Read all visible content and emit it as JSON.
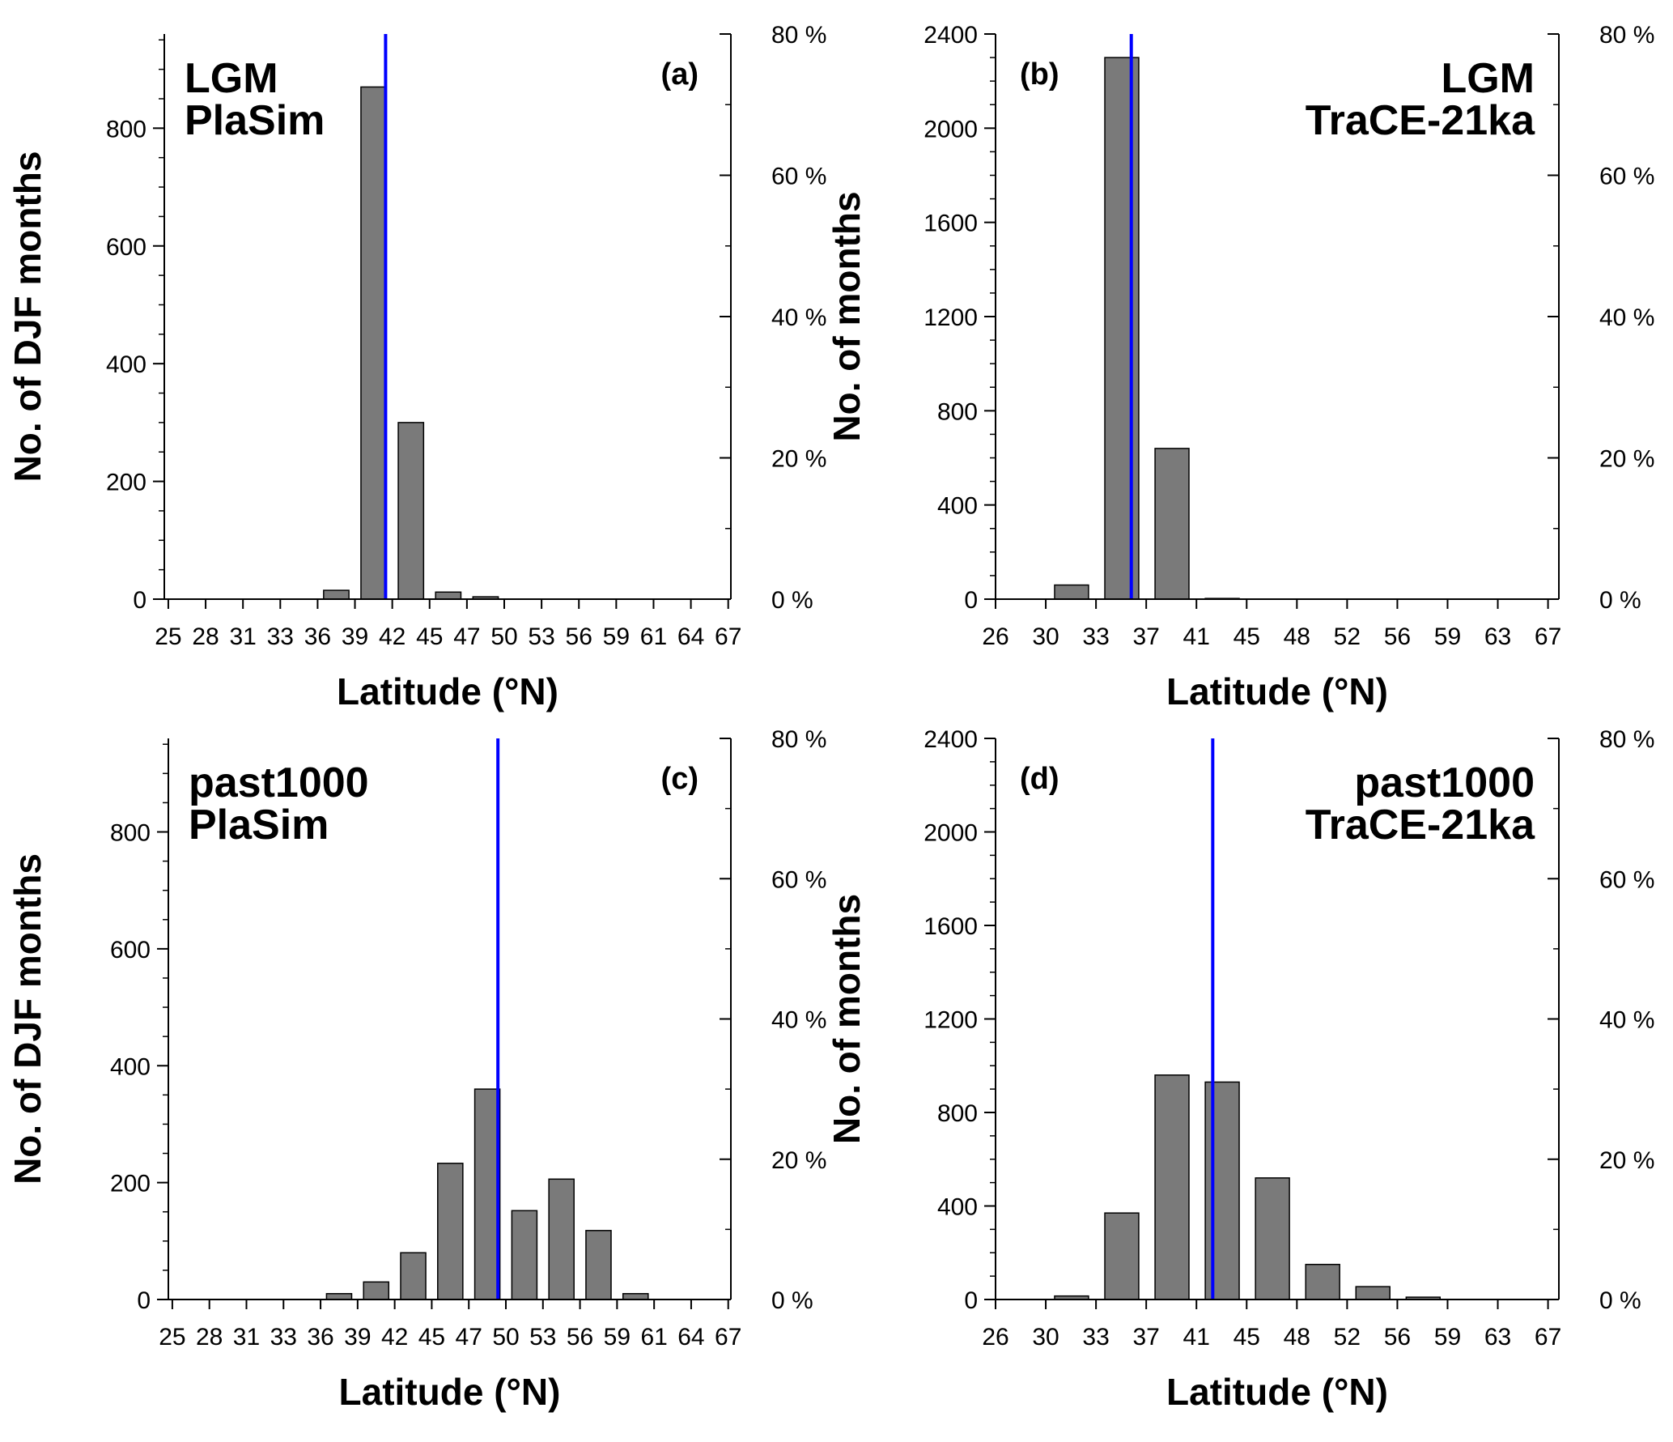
{
  "colors": {
    "bar_fill": "#7a7a7a",
    "bar_stroke": "#000000",
    "mean_line": "#0000ff"
  },
  "chart_data": [
    {
      "type": "bar",
      "panel": "(a)",
      "title_lines": [
        "LGM",
        "PlaSim"
      ],
      "title_align": "left",
      "xlabel": "Latitude (°N)",
      "ylabel": "No. of DJF months",
      "xlim": [
        25,
        67.5
      ],
      "x_ticks": [
        25.3,
        28.1,
        30.9,
        33.7,
        36.5,
        39.3,
        42.1,
        44.9,
        47.7,
        50.5,
        53.3,
        56.1,
        58.9,
        61.7,
        64.5,
        67.3
      ],
      "x_tick_labels": [
        "25",
        "28",
        "31",
        "33",
        "36",
        "39",
        "42",
        "45",
        "47",
        "50",
        "53",
        "56",
        "59",
        "61",
        "64",
        "67"
      ],
      "ylim": [
        0,
        960
      ],
      "y_ticks": [
        0,
        200,
        400,
        600,
        800
      ],
      "y_tick_labels": [
        "0",
        "200",
        "400",
        "600",
        "800"
      ],
      "y_minor_step": 50,
      "pct_ticks": [
        0,
        20,
        40,
        60,
        80
      ],
      "pct_tick_labels": [
        "0 %",
        "20 %",
        "40 %",
        "60 %",
        "80 %"
      ],
      "pct_minor_step": 10,
      "pct_max": 80,
      "bar_width": 1.9,
      "bars": [
        {
          "x": 37.9,
          "y": 15
        },
        {
          "x": 40.7,
          "y": 870
        },
        {
          "x": 43.5,
          "y": 300
        },
        {
          "x": 46.3,
          "y": 12
        },
        {
          "x": 49.1,
          "y": 4
        }
      ],
      "mean_x": 41.6
    },
    {
      "type": "bar",
      "panel": "(b)",
      "title_lines": [
        "LGM",
        "TraCE-21ka"
      ],
      "title_align": "right",
      "xlabel": "Latitude (°N)",
      "ylabel": "No. of months",
      "xlim": [
        26,
        67.5
      ],
      "x_ticks": [
        26,
        29.7,
        33.4,
        37.1,
        40.8,
        44.5,
        48.2,
        51.9,
        55.6,
        59.3,
        63.0,
        66.7
      ],
      "x_tick_labels": [
        "26",
        "30",
        "33",
        "37",
        "41",
        "45",
        "48",
        "52",
        "56",
        "59",
        "63",
        "67"
      ],
      "ylim": [
        0,
        2400
      ],
      "y_ticks": [
        0,
        400,
        800,
        1200,
        1600,
        2000,
        2400
      ],
      "y_tick_labels": [
        "0",
        "400",
        "800",
        "1200",
        "1600",
        "2000",
        "2400"
      ],
      "y_minor_step": 100,
      "pct_ticks": [
        0,
        20,
        40,
        60,
        80
      ],
      "pct_tick_labels": [
        "0 %",
        "20 %",
        "40 %",
        "60 %",
        "80 %"
      ],
      "pct_minor_step": 10,
      "pct_max": 80,
      "bar_width": 2.5,
      "bars": [
        {
          "x": 31.6,
          "y": 60
        },
        {
          "x": 35.3,
          "y": 2300
        },
        {
          "x": 39.0,
          "y": 640
        },
        {
          "x": 42.7,
          "y": 3
        }
      ],
      "mean_x": 36.0
    },
    {
      "type": "bar",
      "panel": "(c)",
      "title_lines": [
        "past1000",
        "PlaSim"
      ],
      "title_align": "left",
      "xlabel": "Latitude (°N)",
      "ylabel": "No. of DJF months",
      "xlim": [
        25,
        67.5
      ],
      "x_ticks": [
        25.3,
        28.1,
        30.9,
        33.7,
        36.5,
        39.3,
        42.1,
        44.9,
        47.7,
        50.5,
        53.3,
        56.1,
        58.9,
        61.7,
        64.5,
        67.3
      ],
      "x_tick_labels": [
        "25",
        "28",
        "31",
        "33",
        "36",
        "39",
        "42",
        "45",
        "47",
        "50",
        "53",
        "56",
        "59",
        "61",
        "64",
        "67"
      ],
      "ylim": [
        0,
        960
      ],
      "y_ticks": [
        0,
        200,
        400,
        600,
        800
      ],
      "y_tick_labels": [
        "0",
        "200",
        "400",
        "600",
        "800"
      ],
      "y_minor_step": 50,
      "pct_ticks": [
        0,
        20,
        40,
        60,
        80
      ],
      "pct_tick_labels": [
        "0 %",
        "20 %",
        "40 %",
        "60 %",
        "80 %"
      ],
      "pct_minor_step": 10,
      "pct_max": 80,
      "bar_width": 1.9,
      "bars": [
        {
          "x": 37.9,
          "y": 10
        },
        {
          "x": 40.7,
          "y": 30
        },
        {
          "x": 43.5,
          "y": 80
        },
        {
          "x": 46.3,
          "y": 233
        },
        {
          "x": 49.1,
          "y": 360
        },
        {
          "x": 51.9,
          "y": 152
        },
        {
          "x": 54.7,
          "y": 206
        },
        {
          "x": 57.5,
          "y": 118
        },
        {
          "x": 60.3,
          "y": 10
        }
      ],
      "mean_x": 49.9
    },
    {
      "type": "bar",
      "panel": "(d)",
      "title_lines": [
        "past1000",
        "TraCE-21ka"
      ],
      "title_align": "right",
      "xlabel": "Latitude (°N)",
      "ylabel": "No. of months",
      "xlim": [
        26,
        67.5
      ],
      "x_ticks": [
        26,
        29.7,
        33.4,
        37.1,
        40.8,
        44.5,
        48.2,
        51.9,
        55.6,
        59.3,
        63.0,
        66.7
      ],
      "x_tick_labels": [
        "26",
        "30",
        "33",
        "37",
        "41",
        "45",
        "48",
        "52",
        "56",
        "59",
        "63",
        "67"
      ],
      "ylim": [
        0,
        2400
      ],
      "y_ticks": [
        0,
        400,
        800,
        1200,
        1600,
        2000,
        2400
      ],
      "y_tick_labels": [
        "0",
        "400",
        "800",
        "1200",
        "1600",
        "2000",
        "2400"
      ],
      "y_minor_step": 100,
      "pct_ticks": [
        0,
        20,
        40,
        60,
        80
      ],
      "pct_tick_labels": [
        "0 %",
        "20 %",
        "40 %",
        "60 %",
        "80 %"
      ],
      "pct_minor_step": 10,
      "pct_max": 80,
      "bar_width": 2.5,
      "bars": [
        {
          "x": 31.6,
          "y": 15
        },
        {
          "x": 35.3,
          "y": 370
        },
        {
          "x": 39.0,
          "y": 960
        },
        {
          "x": 42.7,
          "y": 930
        },
        {
          "x": 46.4,
          "y": 520
        },
        {
          "x": 50.1,
          "y": 150
        },
        {
          "x": 53.8,
          "y": 55
        },
        {
          "x": 57.5,
          "y": 10
        }
      ],
      "mean_x": 42.0
    }
  ]
}
